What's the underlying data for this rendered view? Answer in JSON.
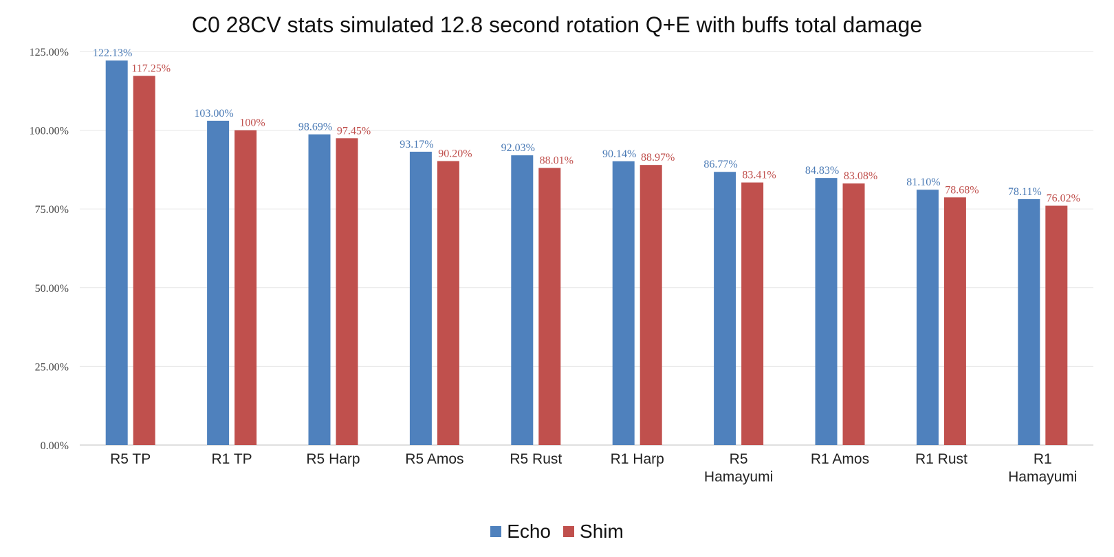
{
  "chart_data": {
    "type": "bar",
    "title": "C0 28CV stats simulated 12.8 second rotation Q+E with buffs total damage",
    "categories": [
      "R5 TP",
      "R1 TP",
      "R5 Harp",
      "R5 Amos",
      "R5 Rust",
      "R1 Harp",
      "R5\nHamayumi",
      "R1 Amos",
      "R1 Rust",
      "R1\nHamayumi"
    ],
    "series": [
      {
        "name": "Echo",
        "color": "#4f81bd",
        "label_color": "#4a7ab5",
        "values": [
          122.13,
          103.0,
          98.69,
          93.17,
          92.03,
          90.14,
          86.77,
          84.83,
          81.1,
          78.11
        ],
        "labels": [
          "122.13%",
          "103.00%",
          "98.69%",
          "93.17%",
          "92.03%",
          "90.14%",
          "86.77%",
          "84.83%",
          "81.10%",
          "78.11%"
        ]
      },
      {
        "name": "Shim",
        "color": "#c0504d",
        "label_color": "#c0504d",
        "values": [
          117.25,
          100,
          97.45,
          90.2,
          88.01,
          88.97,
          83.41,
          83.08,
          78.68,
          76.02
        ],
        "labels": [
          "117.25%",
          "100%",
          "97.45%",
          "90.20%",
          "88.01%",
          "88.97%",
          "83.41%",
          "83.08%",
          "78.68%",
          "76.02%"
        ]
      }
    ],
    "ylim": [
      0,
      125
    ],
    "yticks": [
      0,
      25,
      50,
      75,
      100,
      125
    ],
    "ytick_labels": [
      "0.00%",
      "25.00%",
      "50.00%",
      "75.00%",
      "100.00%",
      "125.00%"
    ],
    "xlabel": "",
    "ylabel": "",
    "grid": true,
    "legend_position": "bottom"
  }
}
